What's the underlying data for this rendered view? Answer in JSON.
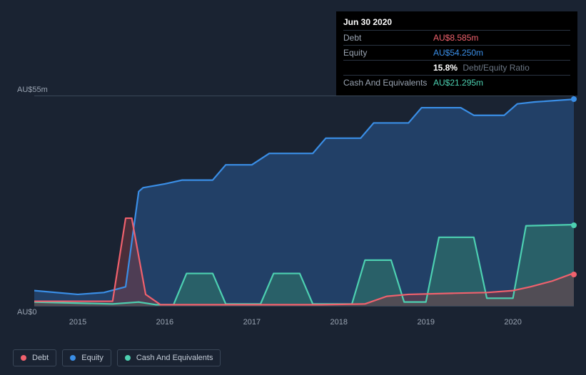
{
  "tooltip": {
    "date": "Jun 30 2020",
    "rows": [
      {
        "label": "Debt",
        "value": "AU$8.585m",
        "color": "#f0616d"
      },
      {
        "label": "Equity",
        "value": "AU$54.250m",
        "color": "#3a8ee6"
      },
      {
        "label": "",
        "pct": "15.8%",
        "ratio_label": "Debt/Equity Ratio"
      },
      {
        "label": "Cash And Equivalents",
        "value": "AU$21.295m",
        "color": "#4dd0b1"
      }
    ]
  },
  "chart": {
    "type": "area",
    "background": "#1a2332",
    "grid_color": "#3a4758",
    "y_top_label": "AU$55m",
    "y_bot_label": "AU$0",
    "xlim": [
      2014.5,
      2020.7
    ],
    "ylim": [
      0,
      55
    ],
    "x_ticks": [
      "2015",
      "2016",
      "2017",
      "2018",
      "2019",
      "2020"
    ],
    "series": {
      "equity": {
        "color": "#3a8ee6",
        "fill": "#2a5a94",
        "fill_opacity": 0.55,
        "points": [
          [
            2014.5,
            4
          ],
          [
            2015.0,
            3
          ],
          [
            2015.3,
            3.5
          ],
          [
            2015.55,
            5
          ],
          [
            2015.7,
            30
          ],
          [
            2015.75,
            31
          ],
          [
            2016.0,
            32
          ],
          [
            2016.2,
            33
          ],
          [
            2016.55,
            33
          ],
          [
            2016.7,
            37
          ],
          [
            2017.0,
            37
          ],
          [
            2017.2,
            40
          ],
          [
            2017.7,
            40
          ],
          [
            2017.85,
            44
          ],
          [
            2018.25,
            44
          ],
          [
            2018.4,
            48
          ],
          [
            2018.8,
            48
          ],
          [
            2018.95,
            52
          ],
          [
            2019.4,
            52
          ],
          [
            2019.55,
            50
          ],
          [
            2019.9,
            50
          ],
          [
            2020.05,
            53
          ],
          [
            2020.25,
            53.5
          ],
          [
            2020.7,
            54.2
          ]
        ]
      },
      "cash": {
        "color": "#4dd0b1",
        "fill": "#2f7a6a",
        "fill_opacity": 0.55,
        "points": [
          [
            2014.5,
            1
          ],
          [
            2015.4,
            0.5
          ],
          [
            2015.7,
            1
          ],
          [
            2015.9,
            0.3
          ],
          [
            2016.1,
            0.3
          ],
          [
            2016.25,
            8.5
          ],
          [
            2016.55,
            8.5
          ],
          [
            2016.7,
            0.5
          ],
          [
            2017.1,
            0.5
          ],
          [
            2017.25,
            8.5
          ],
          [
            2017.55,
            8.5
          ],
          [
            2017.7,
            0.5
          ],
          [
            2018.15,
            0.5
          ],
          [
            2018.3,
            12
          ],
          [
            2018.6,
            12
          ],
          [
            2018.75,
            1
          ],
          [
            2019.0,
            1
          ],
          [
            2019.15,
            18
          ],
          [
            2019.55,
            18
          ],
          [
            2019.7,
            2
          ],
          [
            2020.0,
            2
          ],
          [
            2020.15,
            21
          ],
          [
            2020.7,
            21.3
          ]
        ]
      },
      "debt": {
        "color": "#f0616d",
        "fill": "#7a3a42",
        "fill_opacity": 0.5,
        "points": [
          [
            2014.5,
            1.2
          ],
          [
            2015.4,
            1.2
          ],
          [
            2015.55,
            23
          ],
          [
            2015.62,
            23
          ],
          [
            2015.78,
            3
          ],
          [
            2015.95,
            0.3
          ],
          [
            2016.5,
            0.3
          ],
          [
            2017.0,
            0.3
          ],
          [
            2017.8,
            0.3
          ],
          [
            2018.3,
            0.5
          ],
          [
            2018.55,
            2.5
          ],
          [
            2018.8,
            3
          ],
          [
            2019.3,
            3.3
          ],
          [
            2019.7,
            3.5
          ],
          [
            2020.0,
            4
          ],
          [
            2020.2,
            5
          ],
          [
            2020.45,
            6.5
          ],
          [
            2020.7,
            8.6
          ]
        ]
      }
    },
    "end_markers": [
      {
        "series": "equity",
        "color": "#3a8ee6"
      },
      {
        "series": "cash",
        "color": "#4dd0b1"
      },
      {
        "series": "debt",
        "color": "#f0616d"
      }
    ]
  },
  "legend": [
    {
      "name": "debt",
      "label": "Debt",
      "color": "#f0616d"
    },
    {
      "name": "equity",
      "label": "Equity",
      "color": "#3a8ee6"
    },
    {
      "name": "cash",
      "label": "Cash And Equivalents",
      "color": "#4dd0b1"
    }
  ]
}
